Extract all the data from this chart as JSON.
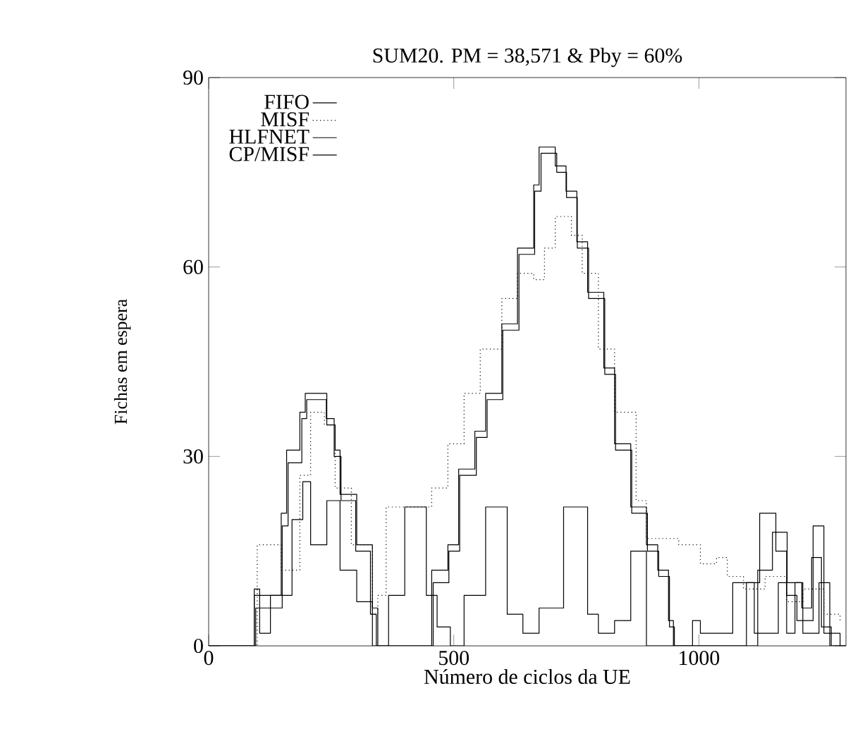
{
  "chart_data": {
    "type": "step",
    "title": "SUM20. PM = 38,571 & Pby = 60%",
    "xlabel": "Número de ciclos da UE",
    "ylabel": "Fichas em espera",
    "xlim": [
      0,
      1300
    ],
    "ylim": [
      0,
      90
    ],
    "xticks": [
      0,
      500,
      1000
    ],
    "yticks": [
      0,
      30,
      60,
      90
    ],
    "grid": false,
    "legend": "top left",
    "series": [
      {
        "name": "FIFO",
        "color": "#000000",
        "line_style": "solid",
        "x": [
          0,
          82,
          93,
          148,
          159,
          186,
          197,
          236,
          241,
          258,
          268,
          302,
          334,
          345,
          444,
          455,
          488,
          510,
          543,
          565,
          598,
          630,
          663,
          674,
          696,
          707,
          729,
          751,
          773,
          806,
          828,
          861,
          893,
          916,
          938,
          948,
          987,
          1003,
          1047,
          1069,
          1124,
          1157,
          1179,
          1200,
          1233,
          1255,
          1288,
          1300
        ],
        "values": [
          0,
          0,
          8,
          21,
          31,
          37,
          40,
          40,
          35,
          31,
          24,
          16,
          6,
          0,
          0,
          12,
          16,
          28,
          34,
          40,
          51,
          63,
          73,
          79,
          79,
          76,
          72,
          64,
          56,
          44,
          32,
          22,
          16,
          12,
          4,
          0,
          4,
          2,
          2,
          10,
          21,
          15,
          8,
          4,
          19,
          2,
          0,
          0
        ]
      },
      {
        "name": "MISF",
        "color": "#000000",
        "line_style": "dotted",
        "x": [
          93,
          99,
          148,
          186,
          208,
          236,
          258,
          291,
          334,
          345,
          362,
          411,
          455,
          488,
          521,
          554,
          598,
          630,
          663,
          685,
          707,
          740,
          762,
          795,
          828,
          872,
          893,
          959,
          1003,
          1036,
          1058,
          1091,
          1135,
          1179,
          1212,
          1255,
          1288
        ],
        "values": [
          0,
          16,
          12,
          27,
          37,
          35,
          25,
          16,
          5,
          8,
          22,
          22,
          25,
          32,
          40,
          47,
          55,
          59,
          58,
          63,
          68,
          65,
          59,
          47,
          37,
          23,
          17,
          16,
          13,
          14,
          11,
          9,
          11,
          7,
          9,
          5,
          4
        ]
      },
      {
        "name": "HLFNET",
        "color": "#000000",
        "line_style": "solid",
        "x": [
          0,
          85,
          96,
          150,
          162,
          190,
          200,
          232,
          240,
          256,
          270,
          300,
          330,
          342,
          448,
          458,
          490,
          512,
          546,
          568,
          600,
          633,
          665,
          678,
          700,
          710,
          730,
          752,
          775,
          808,
          830,
          863,
          895,
          918,
          940,
          950,
          1090,
          1120,
          1150,
          1180,
          1210,
          1230,
          1250,
          1270,
          1300
        ],
        "values": [
          0,
          0,
          6,
          19,
          29,
          36,
          39,
          39,
          36,
          30,
          23,
          15,
          5,
          0,
          0,
          10,
          15,
          27,
          33,
          39,
          50,
          62,
          72,
          78,
          78,
          75,
          71,
          63,
          55,
          43,
          31,
          21,
          15,
          11,
          3,
          0,
          0,
          12,
          18,
          10,
          6,
          14,
          3,
          0,
          0
        ]
      },
      {
        "name": "CP/MISF",
        "color": "#000000",
        "line_style": "solid",
        "x": [
          0,
          82,
          93,
          104,
          126,
          170,
          192,
          208,
          241,
          268,
          302,
          334,
          356,
          367,
          400,
          444,
          466,
          493,
          521,
          565,
          609,
          641,
          674,
          724,
          773,
          795,
          828,
          861,
          893,
          1091,
          1097,
          1113,
          1162,
          1179,
          1196,
          1212,
          1245,
          1267,
          1300
        ],
        "values": [
          0,
          0,
          9,
          2,
          8,
          20,
          26,
          16,
          23,
          12,
          7,
          0,
          0,
          8,
          22,
          8,
          3,
          0,
          8,
          22,
          5,
          2,
          6,
          22,
          5,
          2,
          4,
          15,
          0,
          0,
          10,
          2,
          10,
          2,
          10,
          2,
          10,
          0,
          0
        ]
      }
    ]
  }
}
